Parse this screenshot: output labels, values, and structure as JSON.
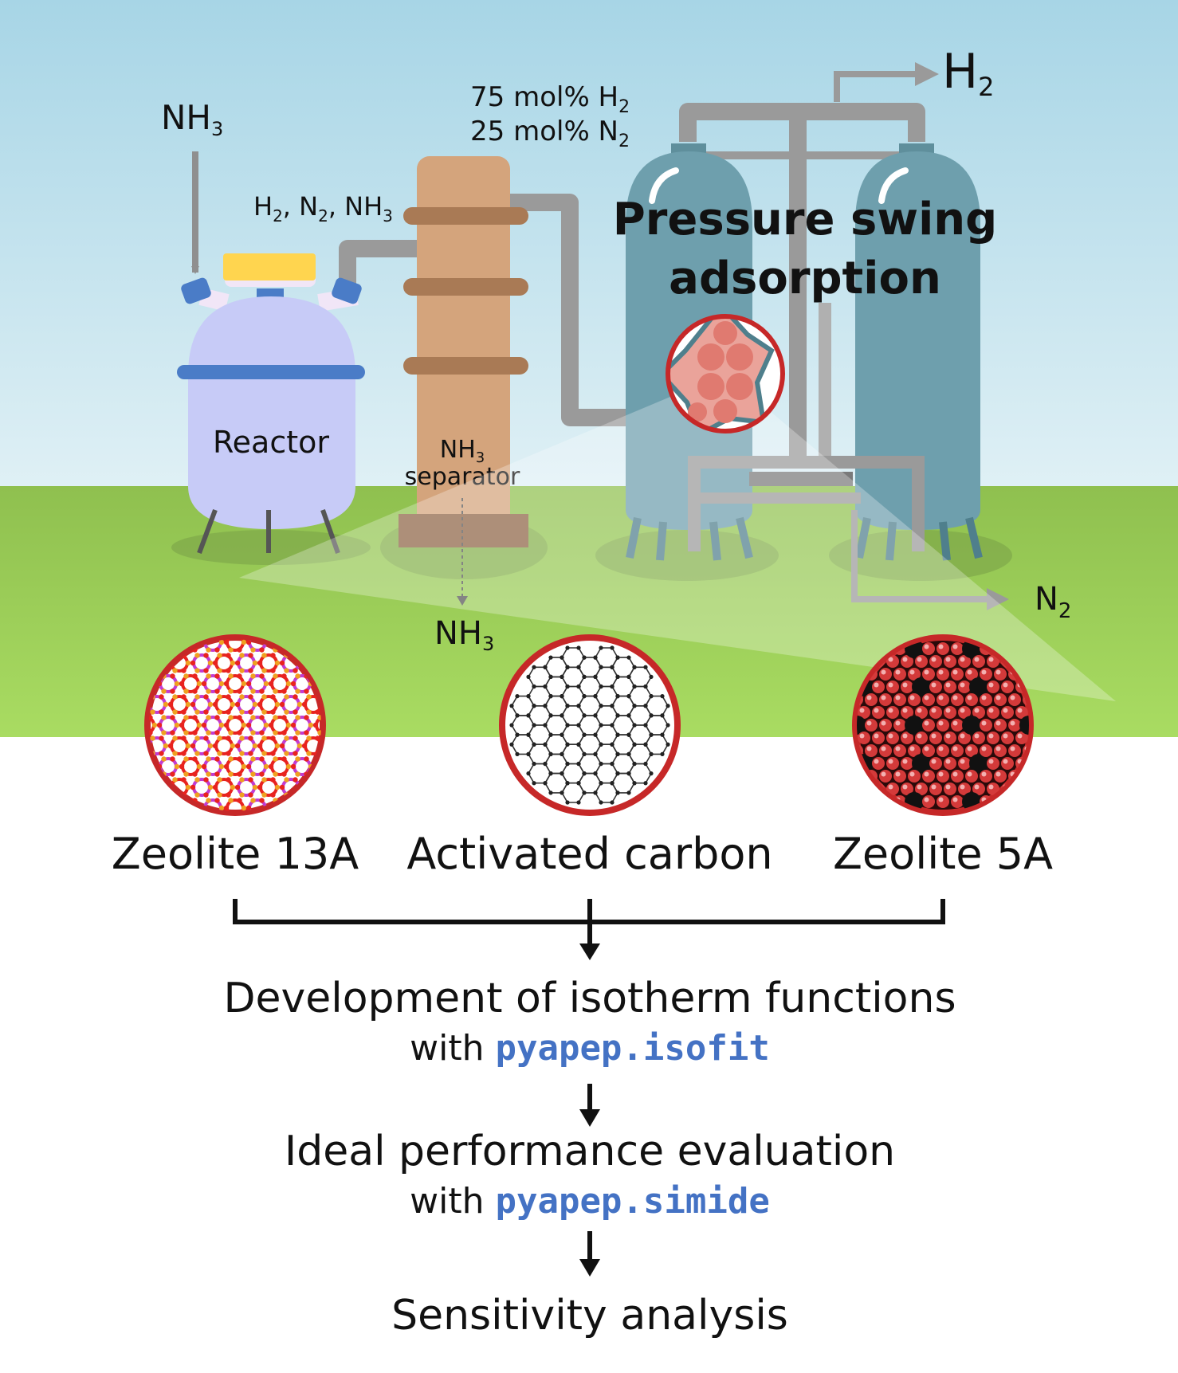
{
  "inputs": {
    "feed_main": "NH",
    "feed_sub": "3"
  },
  "reactor": {
    "label": "Reactor"
  },
  "reactor_outlet": {
    "parts": [
      "H",
      "2",
      ", N",
      "2",
      ", NH",
      "3"
    ]
  },
  "separator": {
    "line1_main": "NH",
    "line1_sub": "3",
    "line2": "separator"
  },
  "separator_bottom": {
    "main": "NH",
    "sub": "3"
  },
  "composition": {
    "line1_main": "75 mol% H",
    "line1_sub": "2",
    "line2_main": "25 mol% N",
    "line2_sub": "2"
  },
  "psa": {
    "title_line1": "Pressure swing",
    "title_line2": "adsorption"
  },
  "products": {
    "top_main": "H",
    "top_sub": "2",
    "bottom_main": "N",
    "bottom_sub": "2"
  },
  "adsorbents": [
    {
      "name": "Zeolite 13A"
    },
    {
      "name": "Activated carbon"
    },
    {
      "name": "Zeolite 5A"
    }
  ],
  "workflow": [
    {
      "text": "Development of isotherm functions",
      "prefix": "with ",
      "code": "pyapep.isofit"
    },
    {
      "text": "Ideal performance evaluation",
      "prefix": "with ",
      "code": "pyapep.simide"
    },
    {
      "text": "Sensitivity analysis"
    }
  ],
  "colors": {
    "sky_top": "#a9d8e8",
    "grass": "#9dcf5a",
    "reactor": "#c7cbf7",
    "reactor_band": "#4a7cc7",
    "reactor_cap": "#ffd54f",
    "column": "#d4a47c",
    "column_band": "#a97a55",
    "vessel": "#6e9fad",
    "pipe": "#999999",
    "ring_red": "#c62828",
    "code_blue": "#4472c4"
  }
}
